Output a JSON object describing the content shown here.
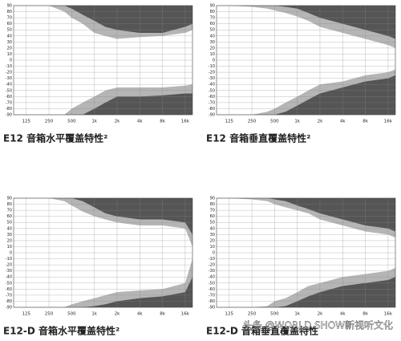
{
  "chart_data": [
    {
      "type": "area",
      "title": "E12 音箱水平覆盖特性²",
      "log_x": true,
      "grid": true,
      "x": [
        125,
        250,
        400,
        500,
        700,
        1000,
        1400,
        2000,
        4000,
        8000,
        16000,
        20000
      ],
      "xlim": [
        85,
        20000
      ],
      "ylim": [
        -90,
        90
      ],
      "xticks": [
        125,
        250,
        500,
        {
          "value": 1000,
          "label": "1k"
        },
        {
          "value": 2000,
          "label": "2k"
        },
        {
          "value": 4000,
          "label": "4k"
        },
        {
          "value": 8000,
          "label": "8k"
        },
        {
          "value": 16000,
          "label": "16k"
        }
      ],
      "yticks": [
        90,
        80,
        70,
        60,
        50,
        40,
        30,
        20,
        10,
        0,
        -10,
        -20,
        -30,
        -40,
        -50,
        -60,
        -70,
        -80,
        -90
      ],
      "series": [
        {
          "color": "#b5b5b5",
          "fill_to": "top",
          "values": [
            90,
            90,
            80,
            70,
            60,
            45,
            40,
            35,
            38,
            40,
            45,
            50
          ]
        },
        {
          "color": "#555555",
          "fill_to": "top",
          "values": [
            90,
            90,
            90,
            85,
            75,
            65,
            55,
            50,
            45,
            45,
            55,
            60
          ]
        },
        {
          "color": "#b5b5b5",
          "fill_to": "bottom",
          "values": [
            -90,
            -90,
            -90,
            -80,
            -70,
            -60,
            -50,
            -45,
            -45,
            -45,
            -42,
            -40
          ]
        },
        {
          "color": "#555555",
          "fill_to": "bottom",
          "values": [
            -90,
            -90,
            -90,
            -90,
            -90,
            -80,
            -70,
            -60,
            -60,
            -58,
            -55,
            -55
          ]
        }
      ]
    },
    {
      "type": "area",
      "title": "E12 音箱垂直覆盖特性²",
      "log_x": true,
      "grid": true,
      "x": [
        125,
        250,
        400,
        500,
        700,
        1000,
        1400,
        2000,
        4000,
        8000,
        16000,
        20000
      ],
      "xlim": [
        85,
        20000
      ],
      "ylim": [
        -90,
        90
      ],
      "xticks": [
        125,
        250,
        500,
        {
          "value": 1000,
          "label": "1k"
        },
        {
          "value": 2000,
          "label": "2k"
        },
        {
          "value": 4000,
          "label": "4k"
        },
        {
          "value": 8000,
          "label": "8k"
        },
        {
          "value": 16000,
          "label": "16k"
        }
      ],
      "yticks": [
        90,
        80,
        70,
        60,
        50,
        40,
        30,
        20,
        10,
        0,
        -10,
        -20,
        -30,
        -40,
        -50,
        -60,
        -70,
        -80,
        -90
      ],
      "series": [
        {
          "color": "#b5b5b5",
          "fill_to": "top",
          "values": [
            90,
            88,
            85,
            82,
            78,
            72,
            65,
            55,
            45,
            35,
            25,
            20
          ]
        },
        {
          "color": "#555555",
          "fill_to": "top",
          "values": [
            90,
            90,
            90,
            90,
            88,
            85,
            78,
            70,
            60,
            50,
            40,
            35
          ]
        },
        {
          "color": "#b5b5b5",
          "fill_to": "bottom",
          "values": [
            -90,
            -90,
            -85,
            -80,
            -70,
            -60,
            -50,
            -40,
            -35,
            -25,
            -20,
            -15
          ]
        },
        {
          "color": "#555555",
          "fill_to": "bottom",
          "values": [
            -90,
            -90,
            -90,
            -90,
            -85,
            -75,
            -65,
            -55,
            -45,
            -35,
            -30,
            -25
          ]
        }
      ]
    },
    {
      "type": "area",
      "title": "E12-D 音箱水平覆盖特性²",
      "log_x": true,
      "grid": true,
      "x": [
        125,
        250,
        400,
        500,
        700,
        1000,
        1400,
        2000,
        4000,
        8000,
        16000,
        20000
      ],
      "xlim": [
        85,
        20000
      ],
      "ylim": [
        -90,
        90
      ],
      "xticks": [
        125,
        250,
        500,
        {
          "value": 1000,
          "label": "1k"
        },
        {
          "value": 2000,
          "label": "2k"
        },
        {
          "value": 4000,
          "label": "4k"
        },
        {
          "value": 8000,
          "label": "8k"
        },
        {
          "value": 16000,
          "label": "16k"
        }
      ],
      "yticks": [
        90,
        80,
        70,
        60,
        50,
        40,
        30,
        20,
        10,
        0,
        -10,
        -20,
        -30,
        -40,
        -50,
        -60,
        -70,
        -80,
        -90
      ],
      "series": [
        {
          "color": "#b5b5b5",
          "fill_to": "top",
          "values": [
            90,
            90,
            85,
            78,
            68,
            60,
            55,
            50,
            45,
            45,
            40,
            10
          ]
        },
        {
          "color": "#555555",
          "fill_to": "top",
          "values": [
            90,
            90,
            90,
            90,
            85,
            75,
            65,
            60,
            55,
            55,
            50,
            30
          ]
        },
        {
          "color": "#b5b5b5",
          "fill_to": "bottom",
          "values": [
            -90,
            -90,
            -90,
            -85,
            -80,
            -75,
            -70,
            -65,
            -62,
            -60,
            -50,
            -10
          ]
        },
        {
          "color": "#555555",
          "fill_to": "bottom",
          "values": [
            -90,
            -90,
            -90,
            -90,
            -90,
            -88,
            -85,
            -80,
            -75,
            -72,
            -65,
            -40
          ]
        }
      ]
    },
    {
      "type": "area",
      "title": "E12-D 音箱垂直覆盖特性",
      "log_x": true,
      "grid": true,
      "x": [
        125,
        250,
        400,
        500,
        700,
        1000,
        1400,
        2000,
        4000,
        8000,
        16000,
        20000
      ],
      "xlim": [
        85,
        20000
      ],
      "ylim": [
        -90,
        90
      ],
      "xticks": [
        125,
        250,
        500,
        {
          "value": 1000,
          "label": "1k"
        },
        {
          "value": 2000,
          "label": "2k"
        },
        {
          "value": 4000,
          "label": "4k"
        },
        {
          "value": 8000,
          "label": "8k"
        },
        {
          "value": 16000,
          "label": "16k"
        }
      ],
      "yticks": [
        90,
        80,
        70,
        60,
        50,
        40,
        30,
        20,
        10,
        0,
        -10,
        -20,
        -30,
        -40,
        -50,
        -60,
        -70,
        -80,
        -90
      ],
      "series": [
        {
          "color": "#b5b5b5",
          "fill_to": "top",
          "values": [
            90,
            88,
            85,
            80,
            75,
            70,
            65,
            55,
            45,
            35,
            30,
            25
          ]
        },
        {
          "color": "#555555",
          "fill_to": "top",
          "values": [
            90,
            90,
            90,
            88,
            85,
            78,
            72,
            65,
            55,
            45,
            40,
            35
          ]
        },
        {
          "color": "#b5b5b5",
          "fill_to": "bottom",
          "values": [
            -90,
            -90,
            -88,
            -80,
            -75,
            -65,
            -55,
            -50,
            -40,
            -35,
            -30,
            -25
          ]
        },
        {
          "color": "#555555",
          "fill_to": "bottom",
          "values": [
            -90,
            -90,
            -90,
            -90,
            -88,
            -80,
            -72,
            -65,
            -55,
            -50,
            -45,
            -40
          ]
        }
      ]
    }
  ],
  "watermark": "头条 @WORLD SHOW新视听文化"
}
